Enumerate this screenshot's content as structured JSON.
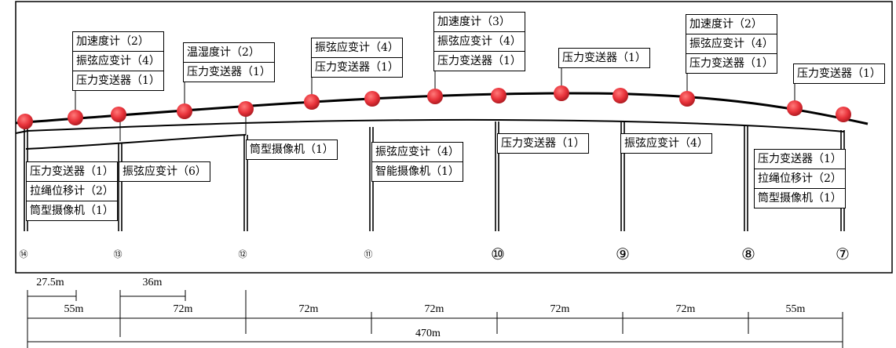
{
  "colors": {
    "sensor_ball": "#e8323a",
    "line": "#000000"
  },
  "top_boxes": [
    {
      "rows": [
        "加速度计（2）",
        "振弦应变计（4）",
        "压力变送器（1）"
      ]
    },
    {
      "rows": [
        "温湿度计（2）",
        "压力变送器（1）"
      ]
    },
    {
      "rows": [
        "振弦应变计（4）",
        "压力变送器（1）"
      ]
    },
    {
      "rows": [
        "加速度计（3）",
        "振弦应变计（4）",
        "压力变送器（1）"
      ]
    },
    {
      "rows": [
        "压力变送器（1）"
      ]
    },
    {
      "rows": [
        "加速度计（2）",
        "振弦应变计（4）",
        "压力变送器（1）"
      ]
    },
    {
      "rows": [
        "压力变送器（1）"
      ]
    }
  ],
  "bottom_boxes": [
    {
      "rows": [
        "压力变送器（1）",
        "拉绳位移计（2）",
        "筒型摄像机（1）"
      ]
    },
    {
      "rows": [
        "振弦应变计（6）"
      ]
    },
    {
      "rows": [
        "筒型摄像机（1）"
      ]
    },
    {
      "rows": [
        "振弦应变计（4）",
        "智能摄像机（1）"
      ]
    },
    {
      "rows": [
        "压力变送器（1）"
      ]
    },
    {
      "rows": [
        "振弦应变计（4）"
      ]
    },
    {
      "rows": [
        "压力变送器（1）",
        "拉绳位移计（2）",
        "筒型摄像机（1）"
      ]
    }
  ],
  "piers": [
    "⑭",
    "⑬",
    "⑫",
    "⑪",
    "⑩",
    "⑨",
    "⑧",
    "⑦"
  ],
  "dimensions": {
    "sub": [
      "27.5m",
      "36m"
    ],
    "spans": [
      "55m",
      "72m",
      "72m",
      "72m",
      "72m",
      "72m",
      "55m"
    ],
    "total": "470m"
  }
}
